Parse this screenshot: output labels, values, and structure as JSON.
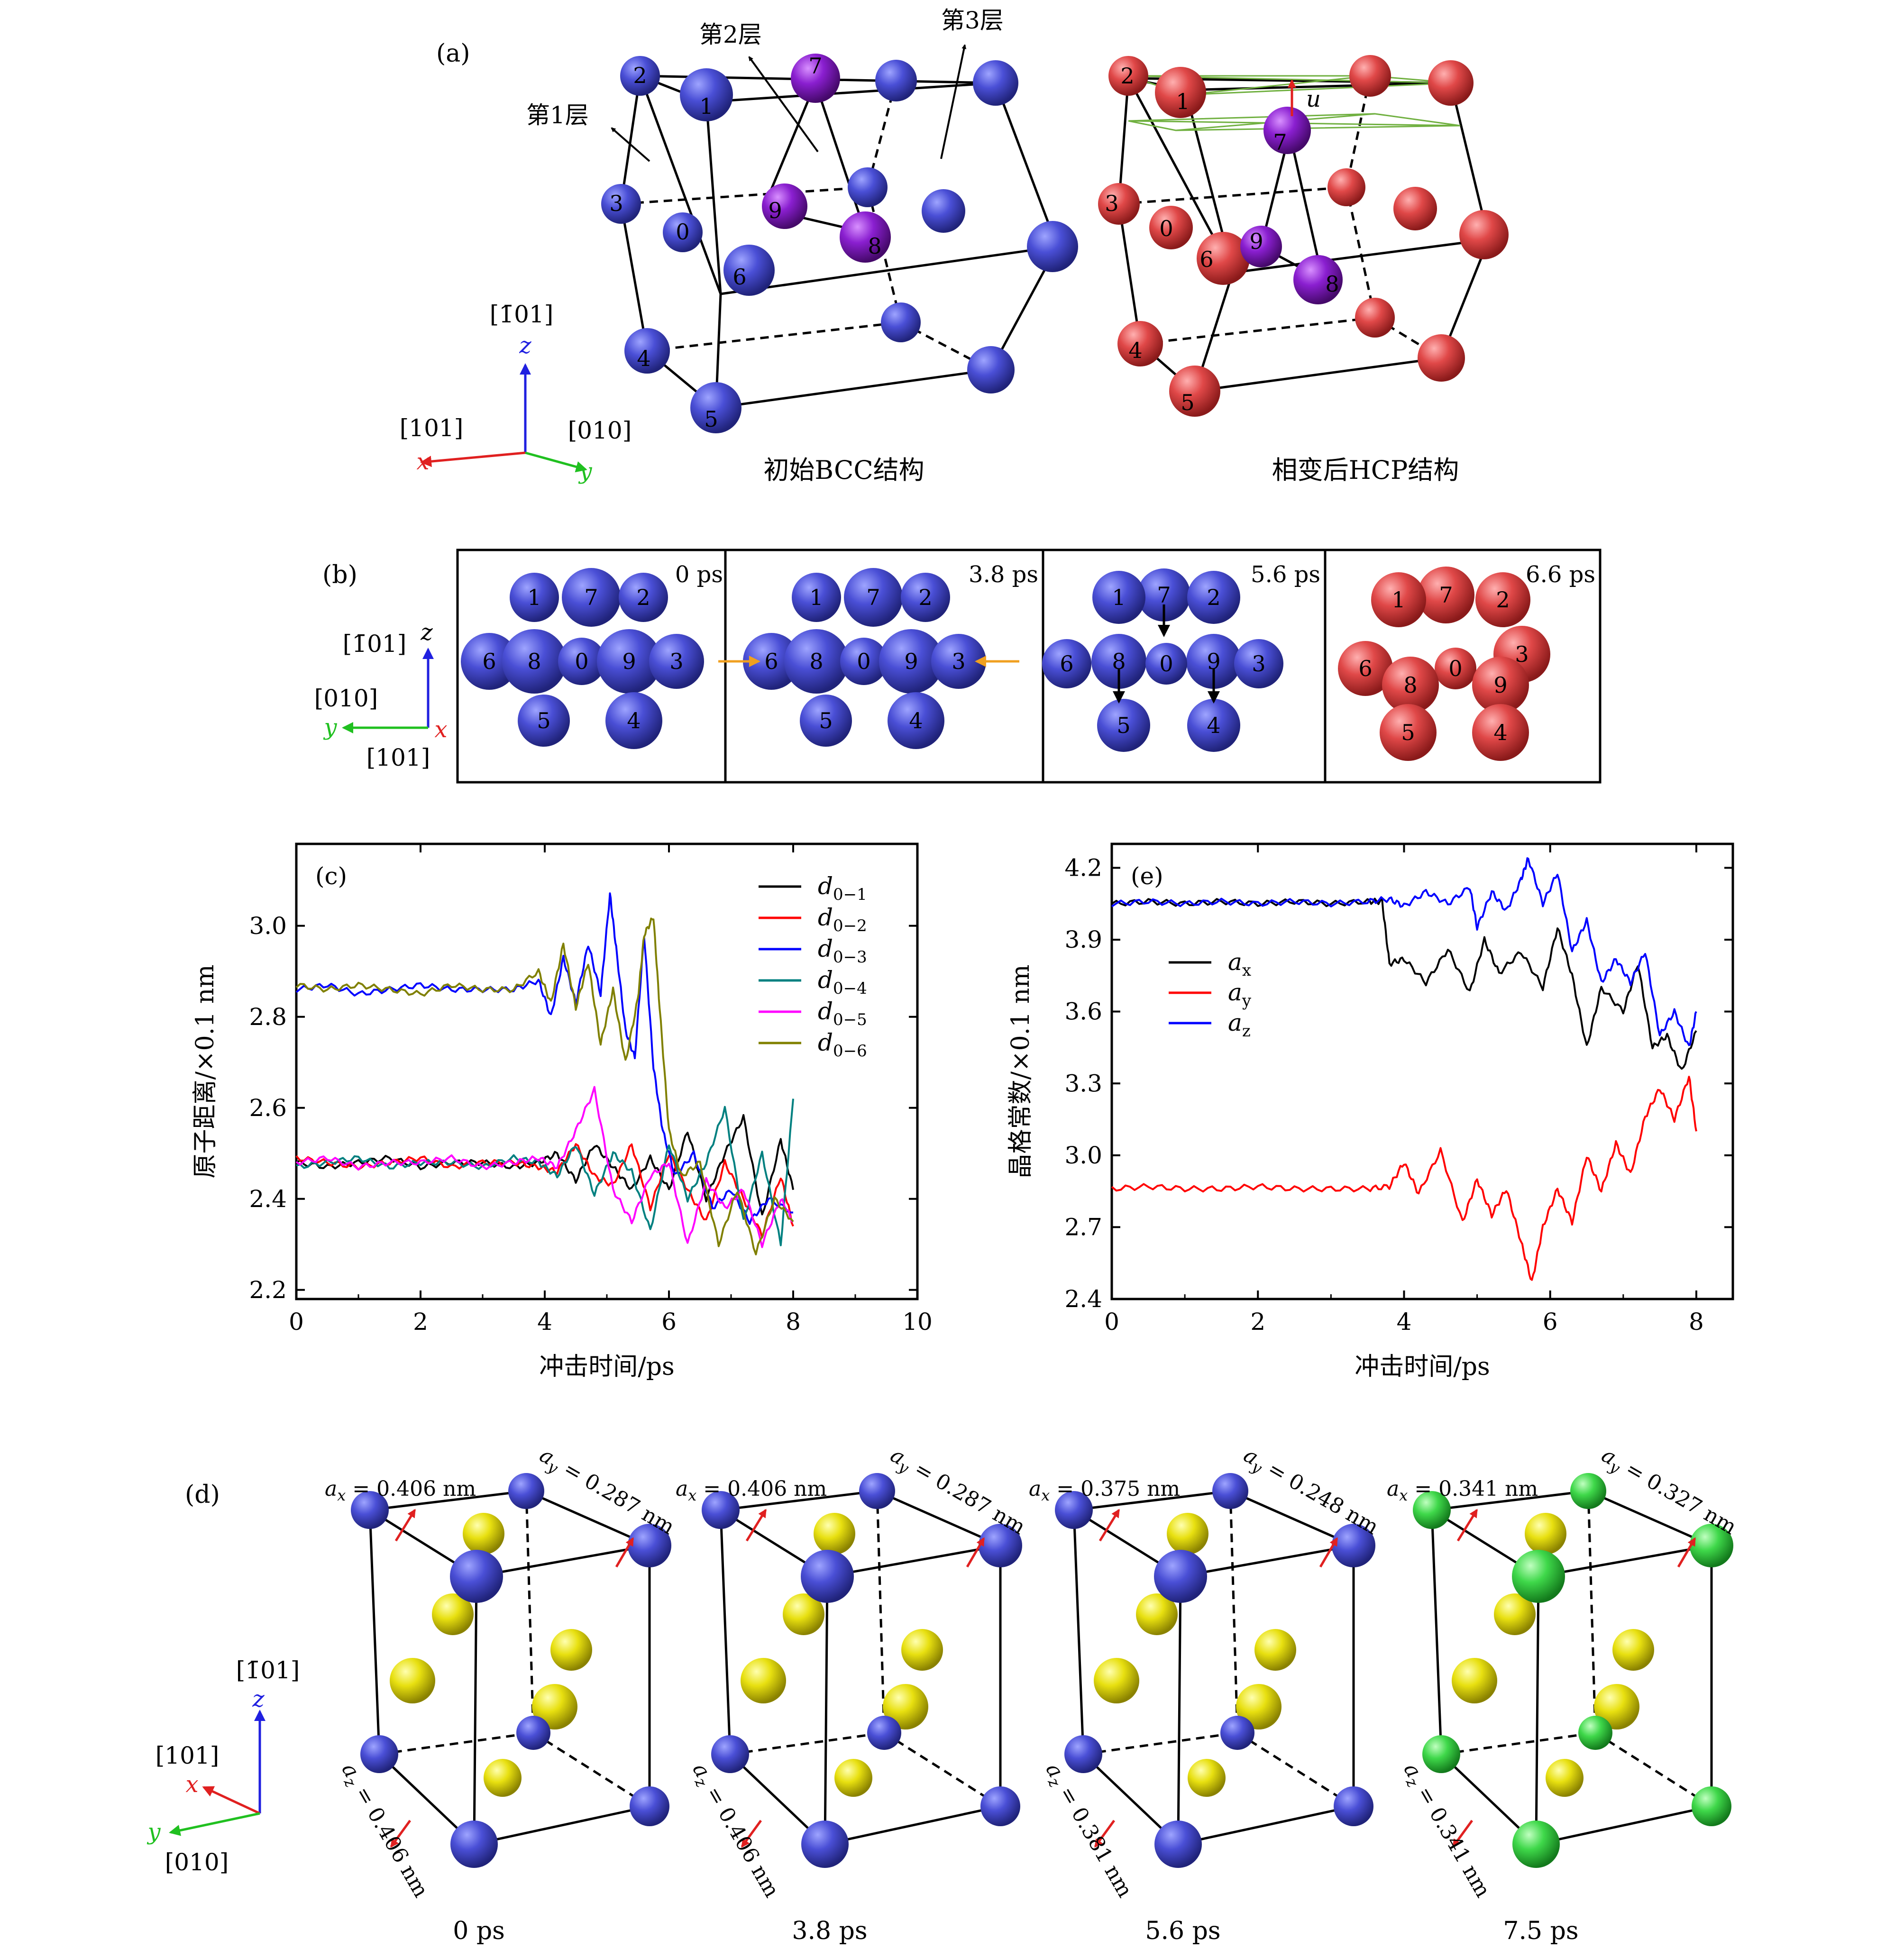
{
  "panel_a": {
    "label": "(a)",
    "bcc_caption": "初始BCC结构",
    "hcp_caption": "相变后HCP结构",
    "layer1": "第1层",
    "layer2": "第2层",
    "layer3": "第3层",
    "shuffle_label": "u",
    "axes": {
      "z_dir": "[1̄01]",
      "z": "z",
      "x_dir": "[101]",
      "x": "x",
      "y_dir": "[010]",
      "y": "y"
    },
    "bcc_atom_numbers": [
      "2",
      "1",
      "7",
      "3",
      "0",
      "9",
      "8",
      "6",
      "4",
      "5"
    ],
    "hcp_atom_numbers": [
      "2",
      "1",
      "7",
      "3",
      "0",
      "9",
      "6",
      "8",
      "4",
      "5"
    ]
  },
  "panel_b": {
    "label": "(b)",
    "axes": {
      "z_dir": "[1̄01]",
      "z": "z",
      "y_dir": "[010]",
      "y": "y",
      "x_dir": "[101]",
      "x": "x"
    },
    "frames": [
      {
        "time": "0 ps",
        "atoms": [
          "1",
          "7",
          "2",
          "6",
          "8",
          "0",
          "9",
          "3",
          "5",
          "4"
        ]
      },
      {
        "time": "3.8 ps",
        "atoms": [
          "1",
          "7",
          "2",
          "6",
          "8",
          "0",
          "9",
          "3",
          "5",
          "4"
        ]
      },
      {
        "time": "5.6 ps",
        "atoms": [
          "1",
          "7",
          "2",
          "6",
          "8",
          "0",
          "9",
          "3",
          "5",
          "4"
        ]
      },
      {
        "time": "6.6 ps",
        "atoms": [
          "1",
          "7",
          "2",
          "3",
          "6",
          "8",
          "0",
          "9",
          "5",
          "4"
        ]
      }
    ]
  },
  "panel_d": {
    "label": "(d)",
    "axes": {
      "z_dir": "[1̄01]",
      "z": "z",
      "x_dir": "[101]",
      "x": "x",
      "y_dir": "[010]",
      "y": "y"
    },
    "frames": [
      {
        "time": "0 ps",
        "ax": "a",
        "ax_sub": "x",
        "ax_val": " = 0.406 nm",
        "ay": "a",
        "ay_sub": "y",
        "ay_val": " = 0.287 nm",
        "az": "a",
        "az_sub": "z",
        "az_val": " = 0.406 nm"
      },
      {
        "time": "3.8 ps",
        "ax": "a",
        "ax_sub": "x",
        "ax_val": " = 0.406 nm",
        "ay": "a",
        "ay_sub": "y",
        "ay_val": " = 0.287 nm",
        "az": "a",
        "az_sub": "z",
        "az_val": " = 0.406 nm"
      },
      {
        "time": "5.6 ps",
        "ax": "a",
        "ax_sub": "x",
        "ax_val": " = 0.375 nm",
        "ay": "a",
        "ay_sub": "y",
        "ay_val": " = 0.248 nm",
        "az": "a",
        "az_sub": "z",
        "az_val": " = 0.381 nm"
      },
      {
        "time": "7.5 ps",
        "ax": "a",
        "ax_sub": "x",
        "ax_val": " = 0.341 nm",
        "ay": "a",
        "ay_sub": "y",
        "ay_val": " = 0.327 nm",
        "az": "a",
        "az_sub": "z",
        "az_val": " = 0.341 nm"
      }
    ]
  },
  "colors": {
    "blue_atom": "#4a4fd6",
    "red_atom": "#e04848",
    "purple_atom": "#8a1fd0",
    "yellow_atom": "#e8e010",
    "green_atom": "#3fd84a",
    "axis_red": "#e02020",
    "axis_blue": "#2020e0",
    "axis_green": "#20c020",
    "orange_arrow": "#f0a020"
  },
  "chart_data": [
    {
      "id": "c",
      "panel": "(c)",
      "type": "line",
      "title": "",
      "xlabel": "冲击时间/ps",
      "ylabel": "原子距离/×0.1 nm",
      "xlim": [
        0,
        10
      ],
      "ylim": [
        2.18,
        3.18
      ],
      "xticks": [
        "0",
        "2",
        "4",
        "6",
        "8",
        "10"
      ],
      "yticks": [
        "2.2",
        "2.4",
        "2.6",
        "2.8",
        "3.0"
      ],
      "legend_position": "top-right",
      "series": [
        {
          "name": "d",
          "sub": "0−1",
          "color": "#000000",
          "x": [
            0,
            0.5,
            1,
            1.5,
            2,
            2.5,
            3,
            3.5,
            3.9,
            4.2,
            4.5,
            4.8,
            5.1,
            5.4,
            5.7,
            6.0,
            6.3,
            6.6,
            6.9,
            7.2,
            7.5,
            7.8,
            8.0
          ],
          "y": [
            2.48,
            2.47,
            2.48,
            2.49,
            2.47,
            2.48,
            2.48,
            2.47,
            2.48,
            2.5,
            2.44,
            2.52,
            2.47,
            2.42,
            2.49,
            2.42,
            2.55,
            2.4,
            2.5,
            2.58,
            2.36,
            2.53,
            2.42
          ]
        },
        {
          "name": "d",
          "sub": "0−2",
          "color": "#ff0000",
          "x": [
            0,
            0.5,
            1,
            1.5,
            2,
            2.5,
            3,
            3.5,
            3.9,
            4.2,
            4.5,
            4.8,
            5.1,
            5.4,
            5.7,
            6.0,
            6.3,
            6.6,
            6.9,
            7.2,
            7.5,
            7.8,
            8.0
          ],
          "y": [
            2.49,
            2.48,
            2.47,
            2.48,
            2.49,
            2.47,
            2.48,
            2.48,
            2.47,
            2.46,
            2.52,
            2.45,
            2.43,
            2.52,
            2.38,
            2.5,
            2.42,
            2.35,
            2.48,
            2.4,
            2.32,
            2.45,
            2.34
          ]
        },
        {
          "name": "d",
          "sub": "0−3",
          "color": "#0000ff",
          "x": [
            0,
            0.5,
            1,
            1.5,
            2,
            2.5,
            3,
            3.5,
            3.9,
            4.1,
            4.3,
            4.5,
            4.7,
            4.9,
            5.05,
            5.15,
            5.3,
            5.45,
            5.6,
            5.75,
            5.9,
            6.1,
            6.4,
            6.7,
            7.0,
            7.3,
            7.6,
            8.0
          ],
          "y": [
            2.86,
            2.87,
            2.85,
            2.86,
            2.87,
            2.86,
            2.86,
            2.86,
            2.88,
            2.8,
            2.93,
            2.83,
            2.96,
            2.85,
            3.07,
            2.95,
            2.77,
            2.71,
            2.98,
            2.69,
            2.55,
            2.45,
            2.5,
            2.38,
            2.42,
            2.35,
            2.4,
            2.37
          ]
        },
        {
          "name": "d",
          "sub": "0−4",
          "color": "#008080",
          "x": [
            0,
            0.5,
            1,
            1.5,
            2,
            2.5,
            3,
            3.5,
            3.9,
            4.2,
            4.5,
            4.8,
            5.1,
            5.4,
            5.7,
            6.0,
            6.3,
            6.6,
            6.9,
            7.2,
            7.5,
            7.8,
            8.0
          ],
          "y": [
            2.47,
            2.48,
            2.49,
            2.47,
            2.48,
            2.48,
            2.47,
            2.49,
            2.48,
            2.45,
            2.52,
            2.41,
            2.5,
            2.46,
            2.33,
            2.52,
            2.4,
            2.48,
            2.6,
            2.35,
            2.5,
            2.3,
            2.62
          ]
        },
        {
          "name": "d",
          "sub": "0−5",
          "color": "#ff00ff",
          "x": [
            0,
            0.5,
            1,
            1.5,
            2,
            2.5,
            3,
            3.5,
            3.9,
            4.2,
            4.5,
            4.8,
            5.1,
            5.4,
            5.7,
            6.0,
            6.3,
            6.6,
            6.9,
            7.2,
            7.5,
            7.8,
            8.0
          ],
          "y": [
            2.48,
            2.49,
            2.47,
            2.48,
            2.48,
            2.49,
            2.47,
            2.48,
            2.49,
            2.47,
            2.55,
            2.64,
            2.42,
            2.35,
            2.45,
            2.48,
            2.3,
            2.44,
            2.38,
            2.42,
            2.3,
            2.4,
            2.35
          ]
        },
        {
          "name": "d",
          "sub": "0−6",
          "color": "#808000",
          "x": [
            0,
            0.5,
            1,
            1.5,
            2,
            2.5,
            3,
            3.5,
            3.9,
            4.1,
            4.3,
            4.5,
            4.7,
            4.9,
            5.1,
            5.3,
            5.5,
            5.6,
            5.75,
            5.85,
            6.0,
            6.2,
            6.5,
            6.8,
            7.1,
            7.4,
            7.7,
            8.0
          ],
          "y": [
            2.87,
            2.86,
            2.87,
            2.86,
            2.85,
            2.87,
            2.86,
            2.86,
            2.9,
            2.83,
            2.96,
            2.82,
            2.92,
            2.74,
            2.86,
            2.7,
            2.84,
            2.98,
            3.02,
            2.82,
            2.55,
            2.45,
            2.48,
            2.3,
            2.42,
            2.28,
            2.4,
            2.35
          ]
        }
      ]
    },
    {
      "id": "e",
      "panel": "(e)",
      "type": "line",
      "title": "",
      "xlabel": "冲击时间/ps",
      "ylabel": "晶格常数/×0.1 nm",
      "xlim": [
        0,
        8.5
      ],
      "ylim": [
        2.4,
        4.3
      ],
      "xticks": [
        "0",
        "2",
        "4",
        "6",
        "8"
      ],
      "yticks": [
        "2.4",
        "2.7",
        "3.0",
        "3.3",
        "3.6",
        "3.9",
        "4.2"
      ],
      "legend_position": "top-left",
      "series": [
        {
          "name": "a",
          "sub": "x",
          "color": "#000000",
          "x": [
            0,
            0.5,
            1,
            1.5,
            2,
            2.5,
            3,
            3.5,
            3.7,
            3.8,
            4.0,
            4.3,
            4.6,
            4.9,
            5.1,
            5.3,
            5.6,
            5.9,
            6.1,
            6.3,
            6.5,
            6.7,
            7.0,
            7.2,
            7.4,
            7.6,
            7.8,
            8.0
          ],
          "y": [
            4.05,
            4.06,
            4.05,
            4.06,
            4.05,
            4.06,
            4.05,
            4.06,
            4.06,
            3.8,
            3.82,
            3.72,
            3.86,
            3.68,
            3.9,
            3.76,
            3.85,
            3.7,
            3.95,
            3.75,
            3.45,
            3.7,
            3.6,
            3.8,
            3.45,
            3.5,
            3.35,
            3.52
          ]
        },
        {
          "name": "a",
          "sub": "y",
          "color": "#ff0000",
          "x": [
            0,
            0.5,
            1,
            1.5,
            2,
            2.5,
            3,
            3.5,
            3.8,
            4.0,
            4.2,
            4.5,
            4.8,
            5.0,
            5.2,
            5.4,
            5.6,
            5.75,
            5.9,
            6.1,
            6.3,
            6.5,
            6.7,
            6.9,
            7.1,
            7.3,
            7.5,
            7.7,
            7.9,
            8.0
          ],
          "y": [
            2.86,
            2.87,
            2.86,
            2.86,
            2.87,
            2.86,
            2.86,
            2.86,
            2.87,
            2.97,
            2.84,
            3.02,
            2.72,
            2.9,
            2.75,
            2.86,
            2.64,
            2.47,
            2.7,
            2.86,
            2.72,
            3.0,
            2.85,
            3.05,
            2.92,
            3.16,
            3.28,
            3.15,
            3.33,
            3.1
          ]
        },
        {
          "name": "a",
          "sub": "z",
          "color": "#0000ff",
          "x": [
            0,
            0.5,
            1,
            1.5,
            2,
            2.5,
            3,
            3.5,
            3.8,
            4.0,
            4.3,
            4.6,
            4.9,
            5.0,
            5.2,
            5.4,
            5.6,
            5.7,
            5.9,
            6.1,
            6.3,
            6.5,
            6.7,
            6.9,
            7.1,
            7.3,
            7.5,
            7.7,
            7.9,
            8.0
          ],
          "y": [
            4.05,
            4.06,
            4.05,
            4.06,
            4.05,
            4.06,
            4.05,
            4.06,
            4.07,
            4.04,
            4.1,
            4.05,
            4.12,
            3.95,
            4.1,
            4.02,
            4.15,
            4.24,
            4.05,
            4.18,
            3.85,
            3.98,
            3.72,
            3.82,
            3.72,
            3.85,
            3.5,
            3.6,
            3.45,
            3.6
          ]
        }
      ]
    }
  ]
}
